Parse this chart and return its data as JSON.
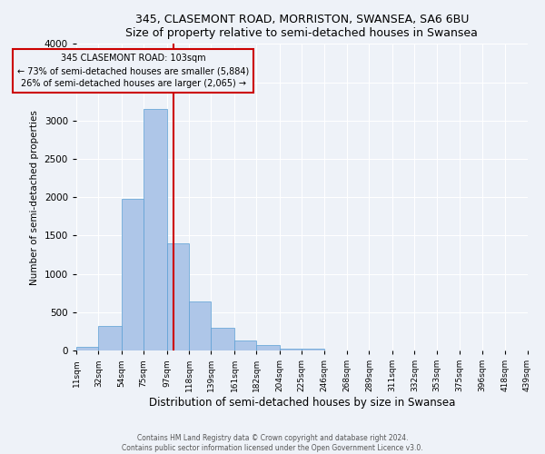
{
  "title": "345, CLASEMONT ROAD, MORRISTON, SWANSEA, SA6 6BU",
  "subtitle": "Size of property relative to semi-detached houses in Swansea",
  "xlabel": "Distribution of semi-detached houses by size in Swansea",
  "ylabel": "Number of semi-detached properties",
  "bin_edges": [
    11,
    32,
    54,
    75,
    97,
    118,
    139,
    161,
    182,
    204,
    225,
    246,
    268,
    289,
    311,
    332,
    353,
    375,
    396,
    418,
    439
  ],
  "bar_heights": [
    50,
    320,
    1980,
    3150,
    1400,
    640,
    300,
    130,
    70,
    30,
    20,
    0,
    0,
    0,
    0,
    0,
    0,
    0,
    0,
    0
  ],
  "bar_color": "#aec6e8",
  "bar_edgecolor": "#5a9fd4",
  "property_value": 103,
  "vline_color": "#cc0000",
  "annotation_title": "345 CLASEMONT ROAD: 103sqm",
  "annotation_line1": "← 73% of semi-detached houses are smaller (5,884)",
  "annotation_line2": "26% of semi-detached houses are larger (2,065) →",
  "annotation_box_edgecolor": "#cc0000",
  "ylim": [
    0,
    4000
  ],
  "yticks": [
    0,
    500,
    1000,
    1500,
    2000,
    2500,
    3000,
    3500,
    4000
  ],
  "tick_labels": [
    "11sqm",
    "32sqm",
    "54sqm",
    "75sqm",
    "97sqm",
    "118sqm",
    "139sqm",
    "161sqm",
    "182sqm",
    "204sqm",
    "225sqm",
    "246sqm",
    "268sqm",
    "289sqm",
    "311sqm",
    "332sqm",
    "353sqm",
    "375sqm",
    "396sqm",
    "418sqm",
    "439sqm"
  ],
  "footer1": "Contains HM Land Registry data © Crown copyright and database right 2024.",
  "footer2": "Contains public sector information licensed under the Open Government Licence v3.0.",
  "background_color": "#eef2f8",
  "grid_color": "#ffffff"
}
